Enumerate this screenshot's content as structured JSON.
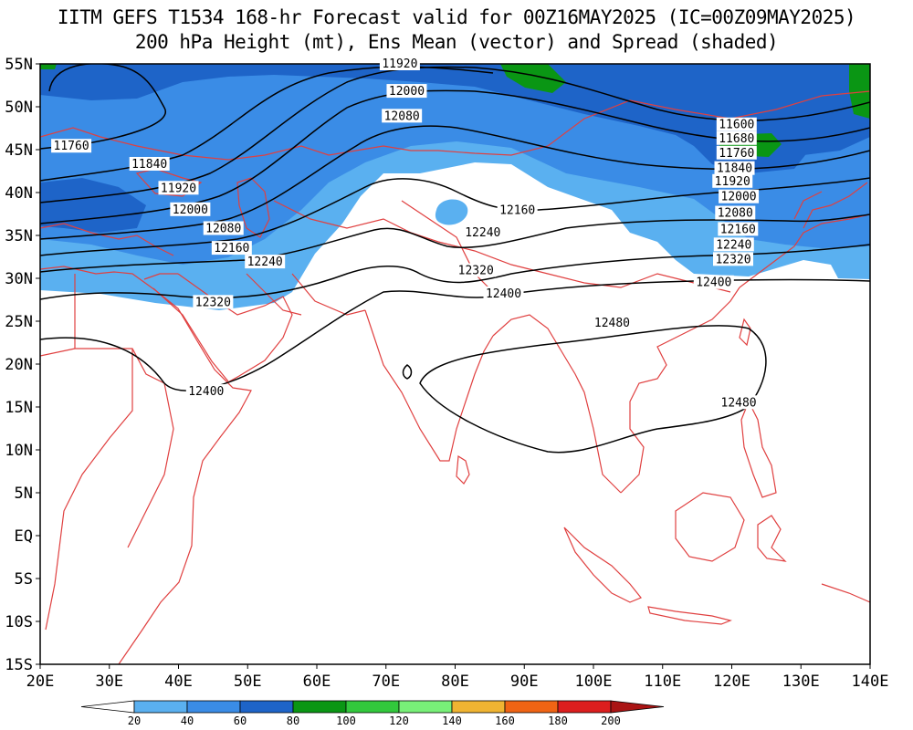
{
  "title": {
    "line1": "IITM GEFS T1534 168-hr Forecast valid for 00Z16MAY2025 (IC=00Z09MAY2025)",
    "line2": "200 hPa Height (mt), Ens Mean (vector) and Spread (shaded)"
  },
  "map_extent": {
    "lon": [
      20,
      140
    ],
    "lat": [
      -15,
      55
    ]
  },
  "lat_labels": [
    "55N",
    "50N",
    "45N",
    "40N",
    "35N",
    "30N",
    "25N",
    "20N",
    "15N",
    "10N",
    "5N",
    "EQ",
    "5S",
    "10S",
    "15S"
  ],
  "lat_values": [
    55,
    50,
    45,
    40,
    35,
    30,
    25,
    20,
    15,
    10,
    5,
    0,
    -5,
    -10,
    -15
  ],
  "lon_labels": [
    "20E",
    "30E",
    "40E",
    "50E",
    "60E",
    "70E",
    "80E",
    "90E",
    "100E",
    "110E",
    "120E",
    "130E",
    "140E"
  ],
  "lon_values": [
    20,
    30,
    40,
    50,
    60,
    70,
    80,
    90,
    100,
    110,
    120,
    130,
    140
  ],
  "colorbar": {
    "ticks": [
      "20",
      "40",
      "60",
      "80",
      "100",
      "120",
      "140",
      "160",
      "180",
      "200"
    ],
    "colors": [
      "#ffffff",
      "#5ab0f0",
      "#3a8ce6",
      "#1e64c8",
      "#0a9614",
      "#32c83c",
      "#78f078",
      "#f0b432",
      "#f06414",
      "#dc1e1e",
      "#aa1414"
    ]
  },
  "contour_labels": [
    {
      "text": "11760",
      "lon": 24.5,
      "lat": 45.4
    },
    {
      "text": "11840",
      "lon": 35.8,
      "lat": 43.3
    },
    {
      "text": "11920",
      "lon": 40,
      "lat": 40.5
    },
    {
      "text": "12000",
      "lon": 41.7,
      "lat": 38
    },
    {
      "text": "12080",
      "lon": 46.5,
      "lat": 35.8
    },
    {
      "text": "12160",
      "lon": 47.7,
      "lat": 33.5
    },
    {
      "text": "12240",
      "lon": 52.5,
      "lat": 31.9
    },
    {
      "text": "12320",
      "lon": 45,
      "lat": 27.2
    },
    {
      "text": "12400",
      "lon": 44,
      "lat": 16.8
    },
    {
      "text": "11920",
      "lon": 72,
      "lat": 55
    },
    {
      "text": "12000",
      "lon": 73,
      "lat": 51.8
    },
    {
      "text": "12080",
      "lon": 72.3,
      "lat": 48.9
    },
    {
      "text": "12160",
      "lon": 89,
      "lat": 37.9
    },
    {
      "text": "12240",
      "lon": 84,
      "lat": 35.3
    },
    {
      "text": "12320",
      "lon": 83,
      "lat": 30.9
    },
    {
      "text": "12400",
      "lon": 87,
      "lat": 28.2
    },
    {
      "text": "12480",
      "lon": 102.7,
      "lat": 24.8
    },
    {
      "text": "11600",
      "lon": 120.7,
      "lat": 47.9
    },
    {
      "text": "11680",
      "lon": 120.7,
      "lat": 46.3
    },
    {
      "text": "11760",
      "lon": 120.7,
      "lat": 44.6
    },
    {
      "text": "11840",
      "lon": 120.4,
      "lat": 42.8
    },
    {
      "text": "11920",
      "lon": 120.1,
      "lat": 41.3
    },
    {
      "text": "12000",
      "lon": 121,
      "lat": 39.5
    },
    {
      "text": "12080",
      "lon": 120.5,
      "lat": 37.6
    },
    {
      "text": "12160",
      "lon": 120.9,
      "lat": 35.7
    },
    {
      "text": "12240",
      "lon": 120.3,
      "lat": 33.9
    },
    {
      "text": "12320",
      "lon": 120.2,
      "lat": 32.2
    },
    {
      "text": "12400",
      "lon": 117.4,
      "lat": 29.5
    },
    {
      "text": "12480",
      "lon": 121,
      "lat": 15.5
    }
  ]
}
